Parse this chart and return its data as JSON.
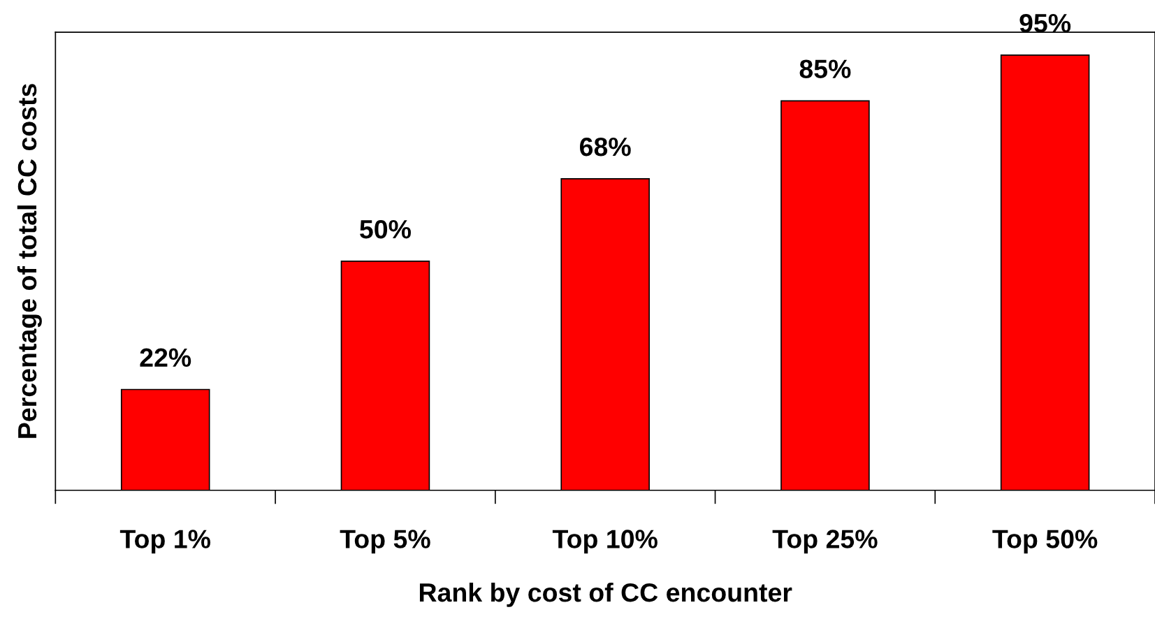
{
  "chart_data": {
    "type": "bar",
    "xlabel": "Rank by cost of CC encounter",
    "ylabel": "Percentage of total CC costs",
    "categories": [
      "Top 1%",
      "Top 5%",
      "Top 10%",
      "Top 25%",
      "Top 50%"
    ],
    "values": [
      22,
      50,
      68,
      85,
      95
    ],
    "value_labels": [
      "22%",
      "50%",
      "68%",
      "85%",
      "95%"
    ],
    "color": "#ff0000",
    "ylim": [
      0,
      100
    ],
    "tick_labels": "x",
    "grid": false,
    "legend": false
  }
}
